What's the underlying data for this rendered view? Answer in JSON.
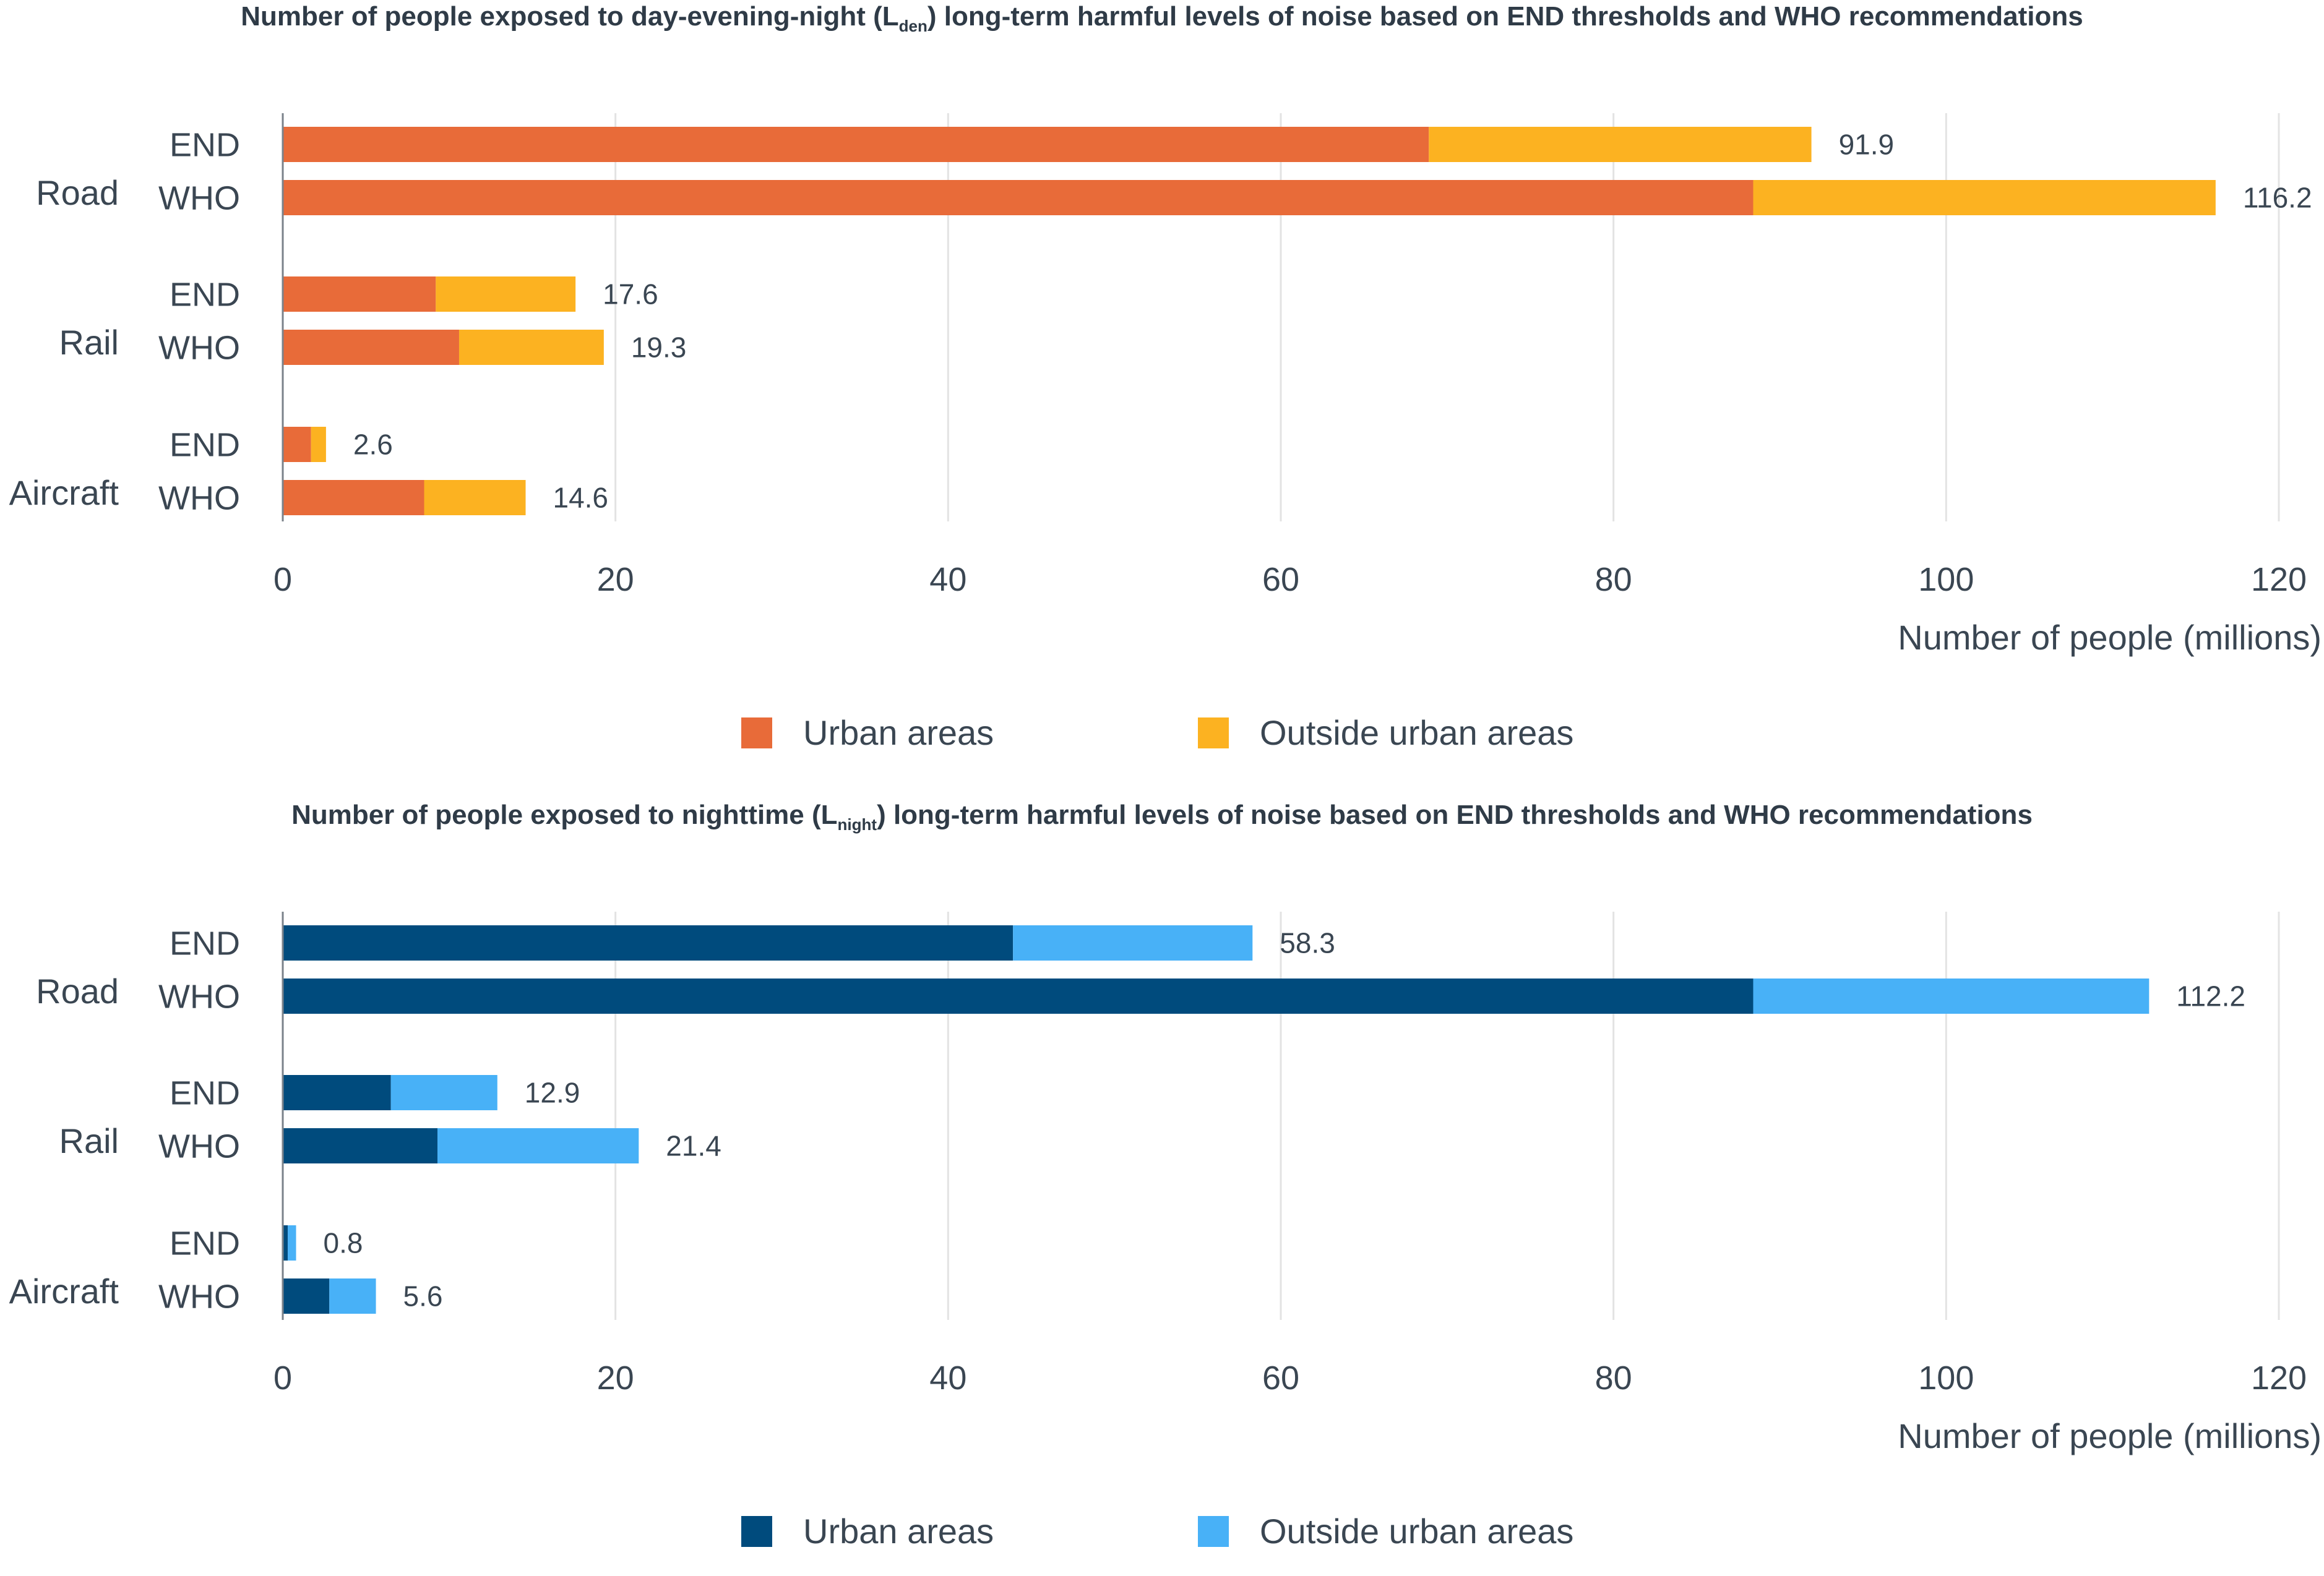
{
  "charts": [
    {
      "title_pre": "Number of people exposed to day-evening-night (L",
      "title_sub": "den",
      "title_post": ") long-term harmful levels of noise based on END thresholds and WHO recommendations",
      "colors": {
        "urban": "#e86b39",
        "outside": "#fcb221"
      },
      "legend": {
        "urban": "Urban areas",
        "outside": "Outside urban areas"
      }
    },
    {
      "title_pre": "Number of people exposed to nighttime (L",
      "title_sub": "night",
      "title_post": ") long-term harmful levels of noise based on END thresholds and WHO recommendations",
      "colors": {
        "urban": "#004b7d",
        "outside": "#48b1f7"
      },
      "legend": {
        "urban": "Urban areas",
        "outside": "Outside urban areas"
      }
    }
  ],
  "chart_data": [
    {
      "type": "bar",
      "orientation": "horizontal",
      "stacked": true,
      "groups": [
        "Road",
        "Rail",
        "Aircraft"
      ],
      "subcategories": [
        "END",
        "WHO"
      ],
      "series": [
        {
          "name": "Urban areas",
          "values": [
            [
              68.9,
              88.4
            ],
            [
              9.2,
              10.6
            ],
            [
              1.7,
              8.5
            ]
          ]
        },
        {
          "name": "Outside urban areas",
          "values": [
            [
              23.0,
              27.8
            ],
            [
              8.4,
              8.7
            ],
            [
              0.9,
              6.1
            ]
          ]
        }
      ],
      "totals": [
        [
          91.9,
          116.2
        ],
        [
          17.6,
          19.3
        ],
        [
          2.6,
          14.6
        ]
      ],
      "total_labels": [
        [
          "91.9",
          "116.2"
        ],
        [
          "17.6",
          "19.3"
        ],
        [
          "2.6",
          "14.6"
        ]
      ],
      "xlabel": "Number of people (millions)",
      "xlim": [
        0,
        120
      ],
      "xticks": [
        0,
        20,
        40,
        60,
        80,
        100,
        120
      ],
      "grid": true,
      "legend_position": "bottom"
    },
    {
      "type": "bar",
      "orientation": "horizontal",
      "stacked": true,
      "groups": [
        "Road",
        "Rail",
        "Aircraft"
      ],
      "subcategories": [
        "END",
        "WHO"
      ],
      "series": [
        {
          "name": "Urban areas",
          "values": [
            [
              43.9,
              88.4
            ],
            [
              6.5,
              9.3
            ],
            [
              0.3,
              2.8
            ]
          ]
        },
        {
          "name": "Outside urban areas",
          "values": [
            [
              14.4,
              23.8
            ],
            [
              6.4,
              12.1
            ],
            [
              0.5,
              2.8
            ]
          ]
        }
      ],
      "totals": [
        [
          58.3,
          112.2
        ],
        [
          12.9,
          21.4
        ],
        [
          0.8,
          5.6
        ]
      ],
      "total_labels": [
        [
          "58.3",
          "112.2"
        ],
        [
          "12.9",
          "21.4"
        ],
        [
          "0.8",
          "5.6"
        ]
      ],
      "xlabel": "Number of people (millions)",
      "xlim": [
        0,
        120
      ],
      "xticks": [
        0,
        20,
        40,
        60,
        80,
        100,
        120
      ],
      "grid": true,
      "legend_position": "bottom"
    }
  ]
}
